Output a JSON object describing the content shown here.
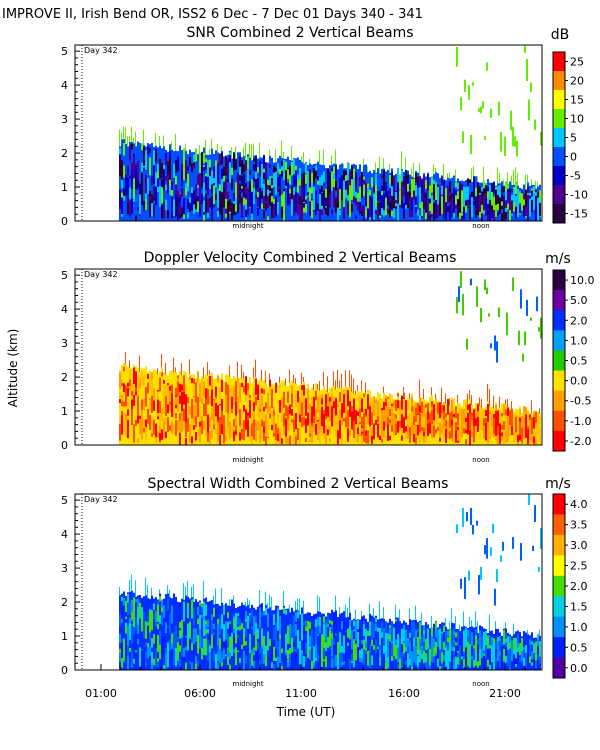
{
  "header": "IMPROVE II,  Irish Bend OR, ISS2    6 Dec -  7 Dec 01 Days 340 - 341",
  "chart_data": [
    {
      "type": "heatmap",
      "title": "SNR Combined 2 Vertical Beams",
      "units": "dB",
      "y_ticks": [
        "0",
        "1",
        "2",
        "3",
        "4",
        "5"
      ],
      "ylim": [
        0,
        5
      ],
      "day_marker": "Day 342",
      "time_labels": [
        "midnight",
        "noon"
      ],
      "colorbar_labels": [
        "25",
        "20",
        "15",
        "10",
        "5",
        "0",
        "-5",
        "-10",
        "-15"
      ],
      "colorbar_colors": [
        "#ff0000",
        "#ff8c00",
        "#ffff00",
        "#66ee00",
        "#00c8ff",
        "#0050ff",
        "#0000c8",
        "#500090",
        "#2a0040"
      ]
    },
    {
      "type": "heatmap",
      "title": "Doppler Velocity Combined 2 Vertical Beams",
      "units": "m/s",
      "y_ticks": [
        "0",
        "1",
        "2",
        "3",
        "4",
        "5"
      ],
      "ylim": [
        0,
        5
      ],
      "ylabel": "Altitude (km)",
      "day_marker": "Day 342",
      "time_labels": [
        "midnight",
        "noon"
      ],
      "colorbar_labels": [
        "10.0",
        "5.0",
        "2.0",
        "1.0",
        "0.5",
        "0.0",
        "-0.5",
        "-1.0",
        "-2.0"
      ],
      "colorbar_colors": [
        "#2a0040",
        "#6a00a0",
        "#0030ff",
        "#00a0ff",
        "#22cc00",
        "#ffe000",
        "#ffa000",
        "#ff5000",
        "#ff0000"
      ]
    },
    {
      "type": "heatmap",
      "title": "Spectral Width Combined 2 Vertical Beams",
      "units": "m/s",
      "y_ticks": [
        "0",
        "1",
        "2",
        "3",
        "4",
        "5"
      ],
      "ylim": [
        0,
        5
      ],
      "day_marker": "Day 342",
      "time_labels": [
        "midnight",
        "noon"
      ],
      "x_ticks": [
        "01:00",
        "06:00",
        "11:00",
        "16:00",
        "21:00"
      ],
      "xlabel": "Time (UT)",
      "colorbar_labels": [
        "4.0",
        "3.5",
        "3.0",
        "2.5",
        "2.0",
        "1.5",
        "1.0",
        "0.5",
        "0.0"
      ],
      "colorbar_colors": [
        "#ff0000",
        "#ff6000",
        "#ffb000",
        "#ffff00",
        "#44dd00",
        "#00d0e0",
        "#0090ff",
        "#0020ff",
        "#5000a0"
      ]
    }
  ]
}
